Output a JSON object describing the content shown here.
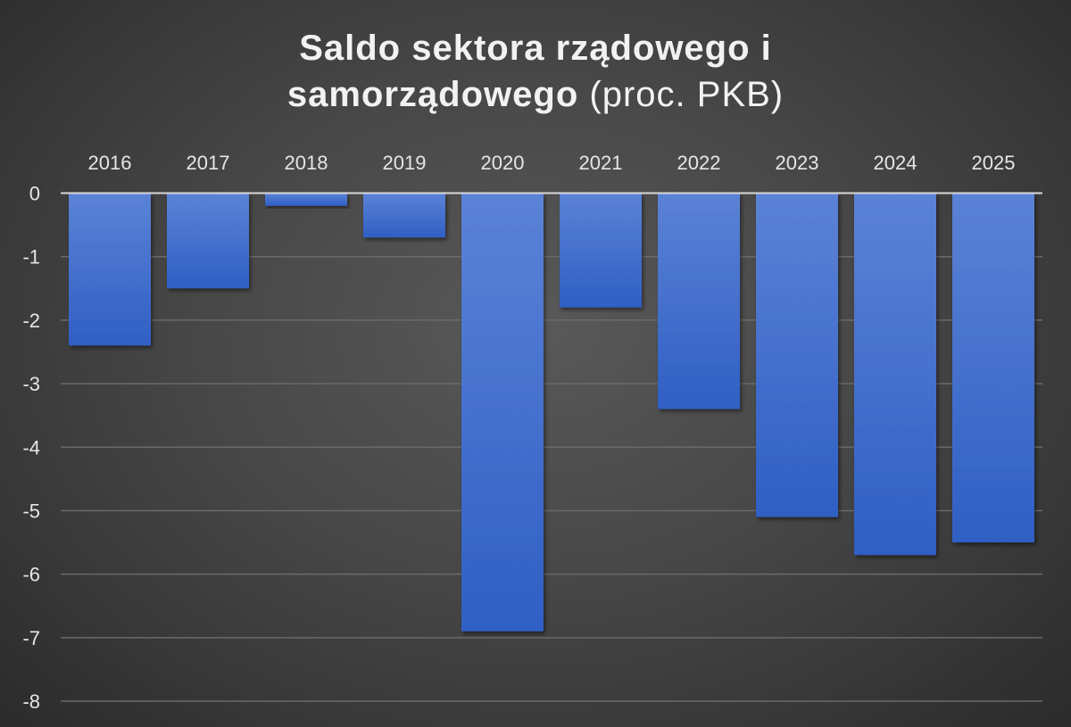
{
  "chart_data": {
    "type": "bar",
    "title_line1": "Saldo sektora rządowego i",
    "title_line2_bold": "samorządowego",
    "title_line2_normal": "(proc. PKB)",
    "xlabel": "",
    "ylabel": "",
    "categories": [
      "2016",
      "2017",
      "2018",
      "2019",
      "2020",
      "2021",
      "2022",
      "2023",
      "2024",
      "2025"
    ],
    "values": [
      -2.4,
      -1.5,
      -0.2,
      -0.7,
      -6.9,
      -1.8,
      -3.4,
      -5.1,
      -5.7,
      -5.5
    ],
    "ylim": [
      -8,
      0
    ],
    "yticks": [
      0,
      -1,
      -2,
      -3,
      -4,
      -5,
      -6,
      -7,
      -8
    ],
    "x_axis_position": "top",
    "grid": true,
    "legend": "none",
    "colors": {
      "bar_top": "#5b82d6",
      "bar_bottom": "#2f5fc4",
      "grid": "#6a6a6a",
      "zero_line": "#d9d9d9",
      "text": "#e6e6e6"
    }
  }
}
